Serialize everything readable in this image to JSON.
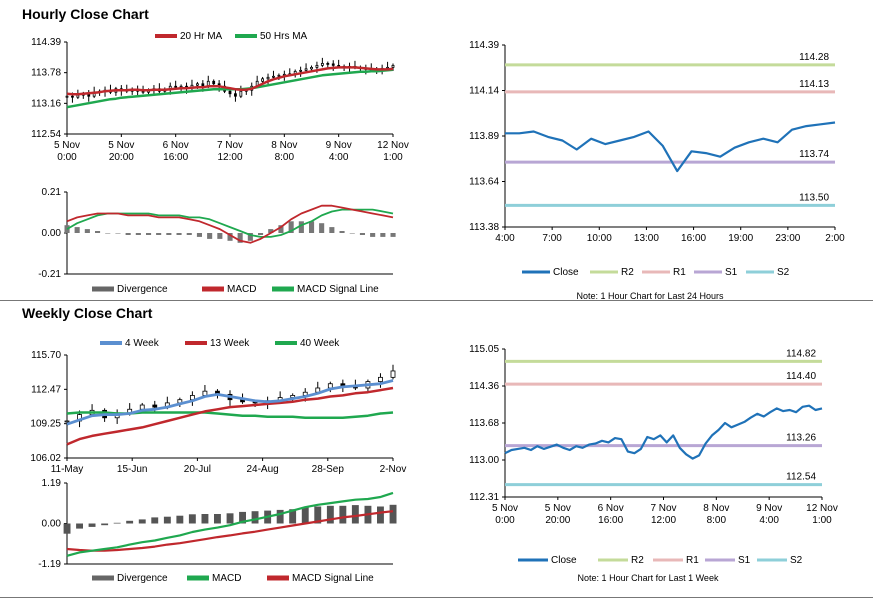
{
  "sections": {
    "hourly_title": "Hourly Close Chart",
    "weekly_title": "Weekly Close Chart"
  },
  "chart_data": [
    {
      "id": "hourly_price",
      "type": "line",
      "x_tick_labels": [
        [
          "5 Nov",
          "0:00"
        ],
        [
          "5 Nov",
          "20:00"
        ],
        [
          "6 Nov",
          "16:00"
        ],
        [
          "7 Nov",
          "12:00"
        ],
        [
          "8 Nov",
          "8:00"
        ],
        [
          "9 Nov",
          "4:00"
        ],
        [
          "12 Nov",
          "1:00"
        ]
      ],
      "y_ticks": [
        "114.39",
        "113.78",
        "113.16",
        "112.54"
      ],
      "ylim": [
        112.54,
        114.39
      ],
      "legend": [
        {
          "name": "20 Hr MA",
          "color": "#c0282d"
        },
        {
          "name": "50 Hrs MA",
          "color": "#1fa84f"
        }
      ],
      "close": [
        113.3,
        113.28,
        113.32,
        113.35,
        113.3,
        113.38,
        113.4,
        113.42,
        113.38,
        113.45,
        113.42,
        113.4,
        113.44,
        113.4,
        113.38,
        113.42,
        113.45,
        113.4,
        113.44,
        113.5,
        113.48,
        113.5,
        113.46,
        113.52,
        113.55,
        113.5,
        113.6,
        113.55,
        113.5,
        113.4,
        113.35,
        113.3,
        113.4,
        113.42,
        113.5,
        113.6,
        113.65,
        113.68,
        113.7,
        113.72,
        113.74,
        113.75,
        113.8,
        113.82,
        113.85,
        113.88,
        113.92,
        113.96,
        113.95,
        113.92,
        113.9,
        113.88,
        113.9,
        113.88,
        113.86,
        113.85,
        113.82,
        113.85,
        113.86,
        113.88,
        113.92
      ],
      "ma20": [
        113.35,
        113.34,
        113.34,
        113.35,
        113.36,
        113.37,
        113.38,
        113.4,
        113.41,
        113.42,
        113.42,
        113.42,
        113.43,
        113.43,
        113.42,
        113.42,
        113.43,
        113.43,
        113.43,
        113.44,
        113.45,
        113.46,
        113.46,
        113.47,
        113.48,
        113.48,
        113.5,
        113.5,
        113.5,
        113.48,
        113.46,
        113.44,
        113.43,
        113.43,
        113.45,
        113.5,
        113.55,
        113.6,
        113.64,
        113.67,
        113.7,
        113.72,
        113.74,
        113.76,
        113.78,
        113.8,
        113.82,
        113.84,
        113.86,
        113.87,
        113.88,
        113.88,
        113.88,
        113.88,
        113.87,
        113.86,
        113.85,
        113.84,
        113.84,
        113.84,
        113.85
      ],
      "ma50": [
        113.08,
        113.1,
        113.12,
        113.14,
        113.16,
        113.18,
        113.2,
        113.22,
        113.24,
        113.25,
        113.27,
        113.28,
        113.29,
        113.3,
        113.31,
        113.32,
        113.33,
        113.34,
        113.35,
        113.36,
        113.37,
        113.38,
        113.39,
        113.4,
        113.41,
        113.42,
        113.43,
        113.44,
        113.44,
        113.44,
        113.44,
        113.44,
        113.44,
        113.45,
        113.46,
        113.48,
        113.5,
        113.52,
        113.54,
        113.56,
        113.58,
        113.6,
        113.62,
        113.64,
        113.66,
        113.68,
        113.7,
        113.72,
        113.73,
        113.74,
        113.75,
        113.76,
        113.77,
        113.78,
        113.79,
        113.79,
        113.8,
        113.8,
        113.81,
        113.82,
        113.83
      ]
    },
    {
      "id": "hourly_macd",
      "type": "line",
      "y_ticks": [
        "0.21",
        "0.00",
        "-0.21"
      ],
      "ylim": [
        -0.21,
        0.21
      ],
      "legend": [
        {
          "name": "Divergence",
          "color": "#666666"
        },
        {
          "name": "MACD",
          "color": "#c0282d"
        },
        {
          "name": "MACD Signal Line",
          "color": "#1fa84f"
        }
      ],
      "macd": [
        0.06,
        0.08,
        0.09,
        0.1,
        0.1,
        0.1,
        0.09,
        0.09,
        0.09,
        0.08,
        0.08,
        0.08,
        0.07,
        0.06,
        0.04,
        0.02,
        -0.01,
        -0.04,
        -0.05,
        -0.03,
        0.0,
        0.03,
        0.07,
        0.1,
        0.12,
        0.14,
        0.14,
        0.13,
        0.12,
        0.11,
        0.1,
        0.09,
        0.08
      ],
      "signal": [
        0.02,
        0.05,
        0.07,
        0.09,
        0.1,
        0.1,
        0.1,
        0.1,
        0.1,
        0.09,
        0.09,
        0.09,
        0.08,
        0.08,
        0.07,
        0.05,
        0.03,
        0.01,
        -0.01,
        -0.02,
        -0.02,
        -0.01,
        0.01,
        0.04,
        0.06,
        0.09,
        0.11,
        0.12,
        0.12,
        0.12,
        0.12,
        0.11,
        0.1
      ],
      "divergence": [
        0.04,
        0.03,
        0.02,
        0.01,
        0.0,
        0.0,
        -0.01,
        -0.01,
        -0.01,
        -0.01,
        -0.01,
        -0.01,
        -0.01,
        -0.02,
        -0.03,
        -0.03,
        -0.04,
        -0.05,
        -0.04,
        -0.01,
        0.02,
        0.04,
        0.06,
        0.06,
        0.06,
        0.05,
        0.03,
        0.01,
        0.0,
        -0.01,
        -0.02,
        -0.02,
        -0.02
      ]
    },
    {
      "id": "last24h",
      "type": "line",
      "x_tick_labels": [
        "4:00",
        "7:00",
        "10:00",
        "13:00",
        "16:00",
        "19:00",
        "23:00",
        "2:00"
      ],
      "y_ticks": [
        "114.39",
        "114.14",
        "113.89",
        "113.64",
        "113.38"
      ],
      "ylim": [
        113.38,
        114.39
      ],
      "levels": [
        {
          "name": "R2",
          "value": "114.28",
          "color": "#c4db9a"
        },
        {
          "name": "R1",
          "value": "114.13",
          "color": "#e8b8b8"
        },
        {
          "name": "S1",
          "value": "113.74",
          "color": "#b8a6d4"
        },
        {
          "name": "S2",
          "value": "113.50",
          "color": "#8ecfd9"
        }
      ],
      "close": [
        113.9,
        113.9,
        113.91,
        113.88,
        113.86,
        113.81,
        113.87,
        113.84,
        113.86,
        113.88,
        113.91,
        113.83,
        113.69,
        113.8,
        113.79,
        113.77,
        113.82,
        113.85,
        113.87,
        113.85,
        113.92,
        113.94,
        113.95,
        113.96
      ],
      "legend": [
        {
          "name": "Close",
          "color": "#1f72b8"
        },
        {
          "name": "R2",
          "color": "#c4db9a"
        },
        {
          "name": "R1",
          "color": "#e8b8b8"
        },
        {
          "name": "S1",
          "color": "#b8a6d4"
        },
        {
          "name": "S2",
          "color": "#8ecfd9"
        }
      ],
      "note": "Note: 1 Hour Chart for Last 24 Hours"
    },
    {
      "id": "weekly_price",
      "type": "line",
      "x_tick_labels": [
        "11-May",
        "15-Jun",
        "20-Jul",
        "24-Aug",
        "28-Sep",
        "2-Nov"
      ],
      "y_ticks": [
        "115.70",
        "112.47",
        "109.25",
        "106.02"
      ],
      "ylim": [
        106.02,
        115.7
      ],
      "legend": [
        {
          "name": "4 Week",
          "color": "#5b8fd0"
        },
        {
          "name": "13 Week",
          "color": "#c0282d"
        },
        {
          "name": "40 Week",
          "color": "#1fa84f"
        }
      ],
      "close": [
        109.5,
        110.1,
        110.5,
        109.8,
        110.2,
        110.6,
        111.0,
        110.8,
        111.2,
        111.5,
        111.9,
        112.3,
        112.0,
        111.5,
        111.3,
        111.2,
        111.4,
        111.7,
        111.9,
        112.2,
        112.6,
        113.0,
        112.8,
        112.6,
        113.2,
        113.6,
        114.2
      ],
      "ma4": [
        109.2,
        109.6,
        110.0,
        110.1,
        110.1,
        110.2,
        110.5,
        110.6,
        110.8,
        111.1,
        111.4,
        111.8,
        112.0,
        111.8,
        111.6,
        111.4,
        111.3,
        111.4,
        111.6,
        111.8,
        112.1,
        112.5,
        112.7,
        112.8,
        112.9,
        113.0,
        113.3
      ],
      "ma13": [
        107.3,
        107.8,
        108.1,
        108.3,
        108.5,
        108.7,
        108.9,
        109.2,
        109.5,
        109.8,
        110.1,
        110.4,
        110.6,
        110.8,
        110.9,
        111.0,
        111.1,
        111.2,
        111.3,
        111.5,
        111.6,
        111.8,
        111.9,
        112.1,
        112.2,
        112.4,
        112.6
      ],
      "ma40": [
        110.2,
        110.3,
        110.3,
        110.3,
        110.2,
        110.2,
        110.3,
        110.3,
        110.3,
        110.3,
        110.3,
        110.3,
        110.2,
        110.1,
        110.0,
        110.0,
        109.9,
        109.9,
        109.9,
        109.8,
        109.8,
        109.8,
        109.8,
        109.9,
        110.0,
        110.2,
        110.3
      ]
    },
    {
      "id": "weekly_macd",
      "type": "bar",
      "y_ticks": [
        "1.19",
        "0.00",
        "-1.19"
      ],
      "ylim": [
        -1.19,
        1.19
      ],
      "legend": [
        {
          "name": "Divergence",
          "color": "#666666"
        },
        {
          "name": "MACD",
          "color": "#1fa84f"
        },
        {
          "name": "MACD Signal Line",
          "color": "#c0282d"
        }
      ],
      "macd": [
        -0.95,
        -0.85,
        -0.8,
        -0.75,
        -0.7,
        -0.62,
        -0.55,
        -0.5,
        -0.42,
        -0.35,
        -0.25,
        -0.18,
        -0.12,
        -0.05,
        0.05,
        0.12,
        0.2,
        0.28,
        0.38,
        0.48,
        0.55,
        0.6,
        0.65,
        0.7,
        0.72,
        0.78,
        0.9
      ],
      "signal": [
        -0.75,
        -0.78,
        -0.8,
        -0.8,
        -0.78,
        -0.75,
        -0.72,
        -0.68,
        -0.62,
        -0.58,
        -0.52,
        -0.46,
        -0.4,
        -0.35,
        -0.29,
        -0.24,
        -0.18,
        -0.12,
        -0.06,
        0.0,
        0.06,
        0.12,
        0.18,
        0.22,
        0.27,
        0.32,
        0.36
      ],
      "divergence": [
        -0.3,
        -0.15,
        -0.1,
        -0.05,
        0.02,
        0.08,
        0.12,
        0.18,
        0.2,
        0.23,
        0.27,
        0.28,
        0.28,
        0.3,
        0.34,
        0.36,
        0.38,
        0.4,
        0.42,
        0.48,
        0.5,
        0.52,
        0.52,
        0.54,
        0.52,
        0.5,
        0.55
      ]
    },
    {
      "id": "last1w",
      "type": "line",
      "x_tick_labels": [
        [
          "5 Nov",
          "0:00"
        ],
        [
          "5 Nov",
          "20:00"
        ],
        [
          "6 Nov",
          "16:00"
        ],
        [
          "7 Nov",
          "12:00"
        ],
        [
          "8 Nov",
          "8:00"
        ],
        [
          "9 Nov",
          "4:00"
        ],
        [
          "12 Nov",
          "1:00"
        ]
      ],
      "y_ticks": [
        "115.05",
        "114.36",
        "113.68",
        "113.00",
        "112.31"
      ],
      "ylim": [
        112.31,
        115.05
      ],
      "levels": [
        {
          "name": "R2",
          "value": "114.82",
          "color": "#c4db9a"
        },
        {
          "name": "R1",
          "value": "114.40",
          "color": "#e8b8b8"
        },
        {
          "name": "S1",
          "value": "113.26",
          "color": "#b8a6d4"
        },
        {
          "name": "S2",
          "value": "112.54",
          "color": "#8ecfd9"
        }
      ],
      "close": [
        113.12,
        113.18,
        113.2,
        113.22,
        113.18,
        113.25,
        113.2,
        113.24,
        113.28,
        113.22,
        113.18,
        113.25,
        113.22,
        113.28,
        113.3,
        113.35,
        113.32,
        113.4,
        113.38,
        113.15,
        113.12,
        113.2,
        113.42,
        113.38,
        113.45,
        113.32,
        113.45,
        113.22,
        113.1,
        113.02,
        113.08,
        113.3,
        113.45,
        113.55,
        113.68,
        113.6,
        113.65,
        113.7,
        113.78,
        113.85,
        113.8,
        113.88,
        113.95,
        113.9,
        113.92,
        113.88,
        113.98,
        114.0,
        113.92,
        113.95
      ],
      "legend": [
        {
          "name": "Close",
          "color": "#1f72b8"
        },
        {
          "name": "R2",
          "color": "#c4db9a"
        },
        {
          "name": "R1",
          "color": "#e8b8b8"
        },
        {
          "name": "S1",
          "color": "#b8a6d4"
        },
        {
          "name": "S2",
          "color": "#8ecfd9"
        }
      ],
      "note": "Note: 1 Hour Chart for Last 1 Week"
    }
  ]
}
